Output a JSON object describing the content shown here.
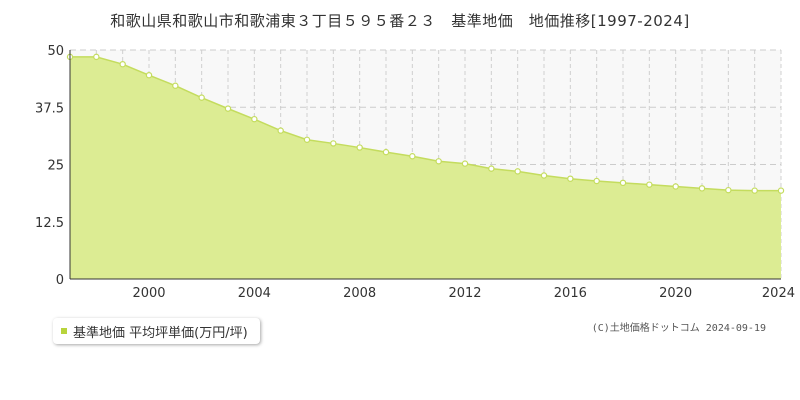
{
  "chart_data": {
    "type": "area",
    "title": "和歌山県和歌山市和歌浦東３丁目５９５番２３　基準地価　地価推移[1997-2024]",
    "x": [
      1997,
      1998,
      1999,
      2000,
      2001,
      2002,
      2003,
      2004,
      2005,
      2006,
      2007,
      2008,
      2009,
      2010,
      2011,
      2012,
      2013,
      2014,
      2015,
      2016,
      2017,
      2018,
      2019,
      2020,
      2021,
      2022,
      2023,
      2024
    ],
    "series": [
      {
        "name": "基準地価 平均坪単価(万円/坪)",
        "values": [
          48.5,
          48.5,
          46.9,
          44.5,
          42.2,
          39.6,
          37.2,
          34.9,
          32.4,
          30.4,
          29.6,
          28.7,
          27.7,
          26.8,
          25.7,
          25.2,
          24.1,
          23.5,
          22.6,
          21.9,
          21.4,
          21.0,
          20.6,
          20.2,
          19.8,
          19.4,
          19.3,
          19.3
        ]
      }
    ],
    "yticks": [
      "0",
      "12.5",
      "25",
      "37.5",
      "50"
    ],
    "xticks": [
      "2000",
      "2004",
      "2008",
      "2012",
      "2016",
      "2020",
      "2024"
    ],
    "xlim": [
      1997,
      2024
    ],
    "ylim": [
      0,
      50
    ],
    "grid": true,
    "legend_position": "bottom-left",
    "colors": {
      "fill": "#dcec93",
      "line": "#c4dc5e",
      "point_fill": "#ffffff",
      "legend_swatch": "#b8d43c",
      "plot_bg": "#f8f8f8"
    }
  },
  "legend": {
    "label": "基準地価 平均坪単価(万円/坪)"
  },
  "copyright": "(C)土地価格ドットコム 2024-09-19"
}
